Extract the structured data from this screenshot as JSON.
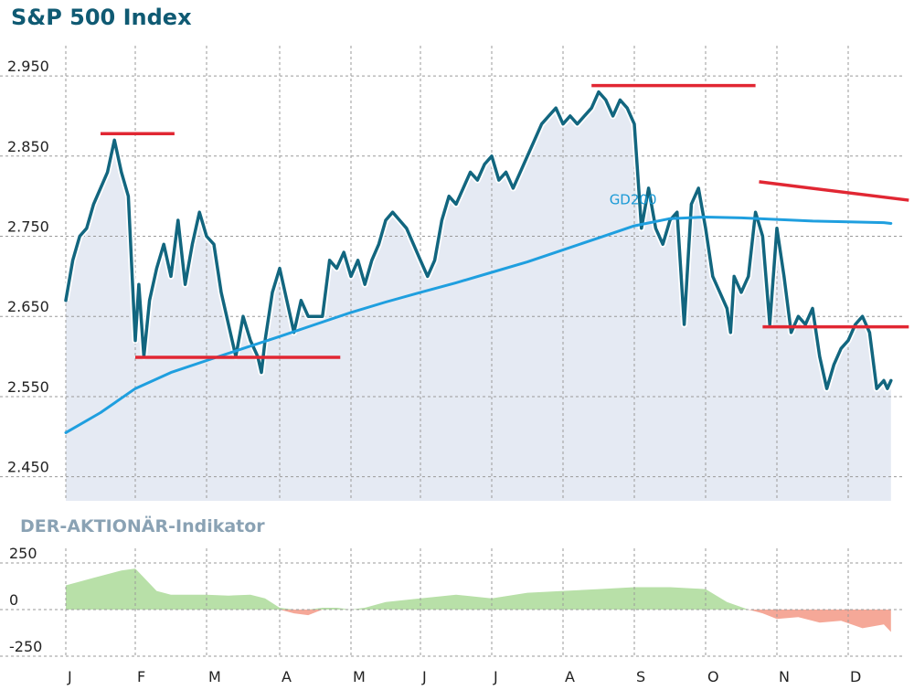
{
  "chart_data": [
    {
      "type": "line",
      "title": "S&P 500 Index",
      "xlabel": "",
      "ylabel": "",
      "ylim": [
        2420,
        2990
      ],
      "xlim": [
        0,
        12
      ],
      "grid": true,
      "x_tick_labels": [
        "J",
        "F",
        "M",
        "A",
        "M",
        "J",
        "J",
        "A",
        "S",
        "O",
        "N",
        "D"
      ],
      "y_ticks": [
        2450,
        2550,
        2650,
        2750,
        2850,
        2950
      ],
      "y_tick_labels": [
        "2.450",
        "2.550",
        "2.650",
        "2.750",
        "2.850",
        "2.950"
      ],
      "series": [
        {
          "name": "S&P 500",
          "color": "#12667f",
          "x": [
            0,
            0.1,
            0.2,
            0.3,
            0.4,
            0.5,
            0.6,
            0.7,
            0.8,
            0.9,
            1.0,
            1.05,
            1.12,
            1.2,
            1.3,
            1.4,
            1.5,
            1.6,
            1.7,
            1.8,
            1.9,
            2.0,
            2.1,
            2.2,
            2.3,
            2.4,
            2.5,
            2.6,
            2.7,
            2.75,
            2.8,
            2.9,
            3.0,
            3.1,
            3.2,
            3.3,
            3.4,
            3.5,
            3.6,
            3.7,
            3.8,
            3.9,
            4.0,
            4.1,
            4.2,
            4.3,
            4.4,
            4.5,
            4.6,
            4.7,
            4.8,
            4.9,
            5.0,
            5.1,
            5.2,
            5.3,
            5.4,
            5.5,
            5.6,
            5.7,
            5.8,
            5.9,
            6.0,
            6.1,
            6.2,
            6.3,
            6.4,
            6.5,
            6.6,
            6.7,
            6.8,
            6.9,
            7.0,
            7.1,
            7.2,
            7.3,
            7.4,
            7.5,
            7.6,
            7.7,
            7.8,
            7.9,
            8.0,
            8.1,
            8.2,
            8.3,
            8.4,
            8.5,
            8.6,
            8.7,
            8.8,
            8.9,
            9.0,
            9.1,
            9.2,
            9.3,
            9.35,
            9.4,
            9.5,
            9.6,
            9.7,
            9.8,
            9.9,
            10.0,
            10.1,
            10.2,
            10.3,
            10.4,
            10.5,
            10.6,
            10.7,
            10.8,
            10.9,
            11.0,
            11.1,
            11.2,
            11.3,
            11.4,
            11.5,
            11.55,
            11.6
          ],
          "values": [
            2670,
            2720,
            2750,
            2760,
            2790,
            2810,
            2830,
            2870,
            2830,
            2800,
            2620,
            2690,
            2600,
            2670,
            2710,
            2740,
            2700,
            2770,
            2690,
            2740,
            2780,
            2750,
            2740,
            2680,
            2640,
            2600,
            2650,
            2620,
            2600,
            2580,
            2620,
            2680,
            2710,
            2670,
            2630,
            2670,
            2650,
            2650,
            2650,
            2720,
            2710,
            2730,
            2700,
            2720,
            2690,
            2720,
            2740,
            2770,
            2780,
            2770,
            2760,
            2740,
            2720,
            2700,
            2720,
            2770,
            2800,
            2790,
            2810,
            2830,
            2820,
            2840,
            2850,
            2820,
            2830,
            2810,
            2830,
            2850,
            2870,
            2890,
            2900,
            2910,
            2890,
            2900,
            2890,
            2900,
            2910,
            2930,
            2920,
            2900,
            2920,
            2910,
            2890,
            2760,
            2810,
            2760,
            2740,
            2770,
            2780,
            2640,
            2790,
            2810,
            2760,
            2700,
            2680,
            2660,
            2630,
            2700,
            2680,
            2700,
            2780,
            2750,
            2640,
            2760,
            2700,
            2630,
            2650,
            2640,
            2660,
            2600,
            2560,
            2590,
            2610,
            2620,
            2640,
            2650,
            2630,
            2560,
            2570,
            2560,
            2570
          ]
        },
        {
          "name": "GD200",
          "color": "#1f9fdf",
          "x": [
            0,
            0.5,
            1.0,
            1.5,
            2.0,
            2.5,
            3.0,
            3.5,
            4.0,
            4.5,
            5.0,
            5.5,
            6.0,
            6.5,
            7.0,
            7.5,
            8.0,
            8.5,
            9.0,
            9.5,
            10.0,
            10.5,
            11.0,
            11.5,
            11.6
          ],
          "values": [
            2505,
            2530,
            2560,
            2580,
            2595,
            2610,
            2625,
            2640,
            2655,
            2668,
            2680,
            2692,
            2705,
            2718,
            2733,
            2748,
            2763,
            2772,
            2774,
            2773,
            2771,
            2769,
            2768,
            2767,
            2766
          ]
        }
      ],
      "annotations": [
        {
          "text": "GD200",
          "x": 7.65,
          "y": 2790
        }
      ],
      "horizontal_lines": [
        {
          "x0": 0.5,
          "x1": 1.55,
          "y0": 2878,
          "y1": 2878,
          "color": "#e12733"
        },
        {
          "x0": 1.0,
          "x1": 3.85,
          "y0": 2599,
          "y1": 2599,
          "color": "#e12733"
        },
        {
          "x0": 7.4,
          "x1": 9.7,
          "y0": 2938,
          "y1": 2938,
          "color": "#e12733"
        },
        {
          "x0": 9.75,
          "x1": 11.85,
          "y0": 2818,
          "y1": 2795,
          "color": "#e12733"
        },
        {
          "x0": 9.8,
          "x1": 11.85,
          "y0": 2637,
          "y1": 2637,
          "color": "#e12733"
        }
      ]
    },
    {
      "type": "area",
      "title": "DER-AKTIONÄR-Indikator",
      "xlabel": "",
      "ylabel": "",
      "ylim": [
        -250,
        250
      ],
      "x_tick_labels": [
        "J",
        "F",
        "M",
        "A",
        "M",
        "J",
        "J",
        "A",
        "S",
        "O",
        "N",
        "D"
      ],
      "y_ticks": [
        -250,
        0,
        250
      ],
      "y_tick_labels": [
        "-250",
        "0",
        "250"
      ],
      "positive_color": "#b8e0a8",
      "negative_color": "#f5a898",
      "x": [
        0,
        0.4,
        0.8,
        1.0,
        1.1,
        1.3,
        1.5,
        1.8,
        2.0,
        2.3,
        2.6,
        2.8,
        3.0,
        3.2,
        3.4,
        3.6,
        3.8,
        4.0,
        4.2,
        4.5,
        5.0,
        5.5,
        6.0,
        6.5,
        7.0,
        7.5,
        8.0,
        8.5,
        9.0,
        9.3,
        9.6,
        9.8,
        10.0,
        10.3,
        10.6,
        10.9,
        11.2,
        11.5,
        11.6
      ],
      "values": [
        130,
        170,
        210,
        220,
        180,
        100,
        80,
        80,
        80,
        75,
        80,
        60,
        10,
        -20,
        -30,
        10,
        10,
        0,
        10,
        40,
        60,
        80,
        60,
        90,
        100,
        110,
        120,
        120,
        110,
        40,
        0,
        -20,
        -50,
        -40,
        -70,
        -60,
        -100,
        -80,
        -120
      ]
    }
  ]
}
